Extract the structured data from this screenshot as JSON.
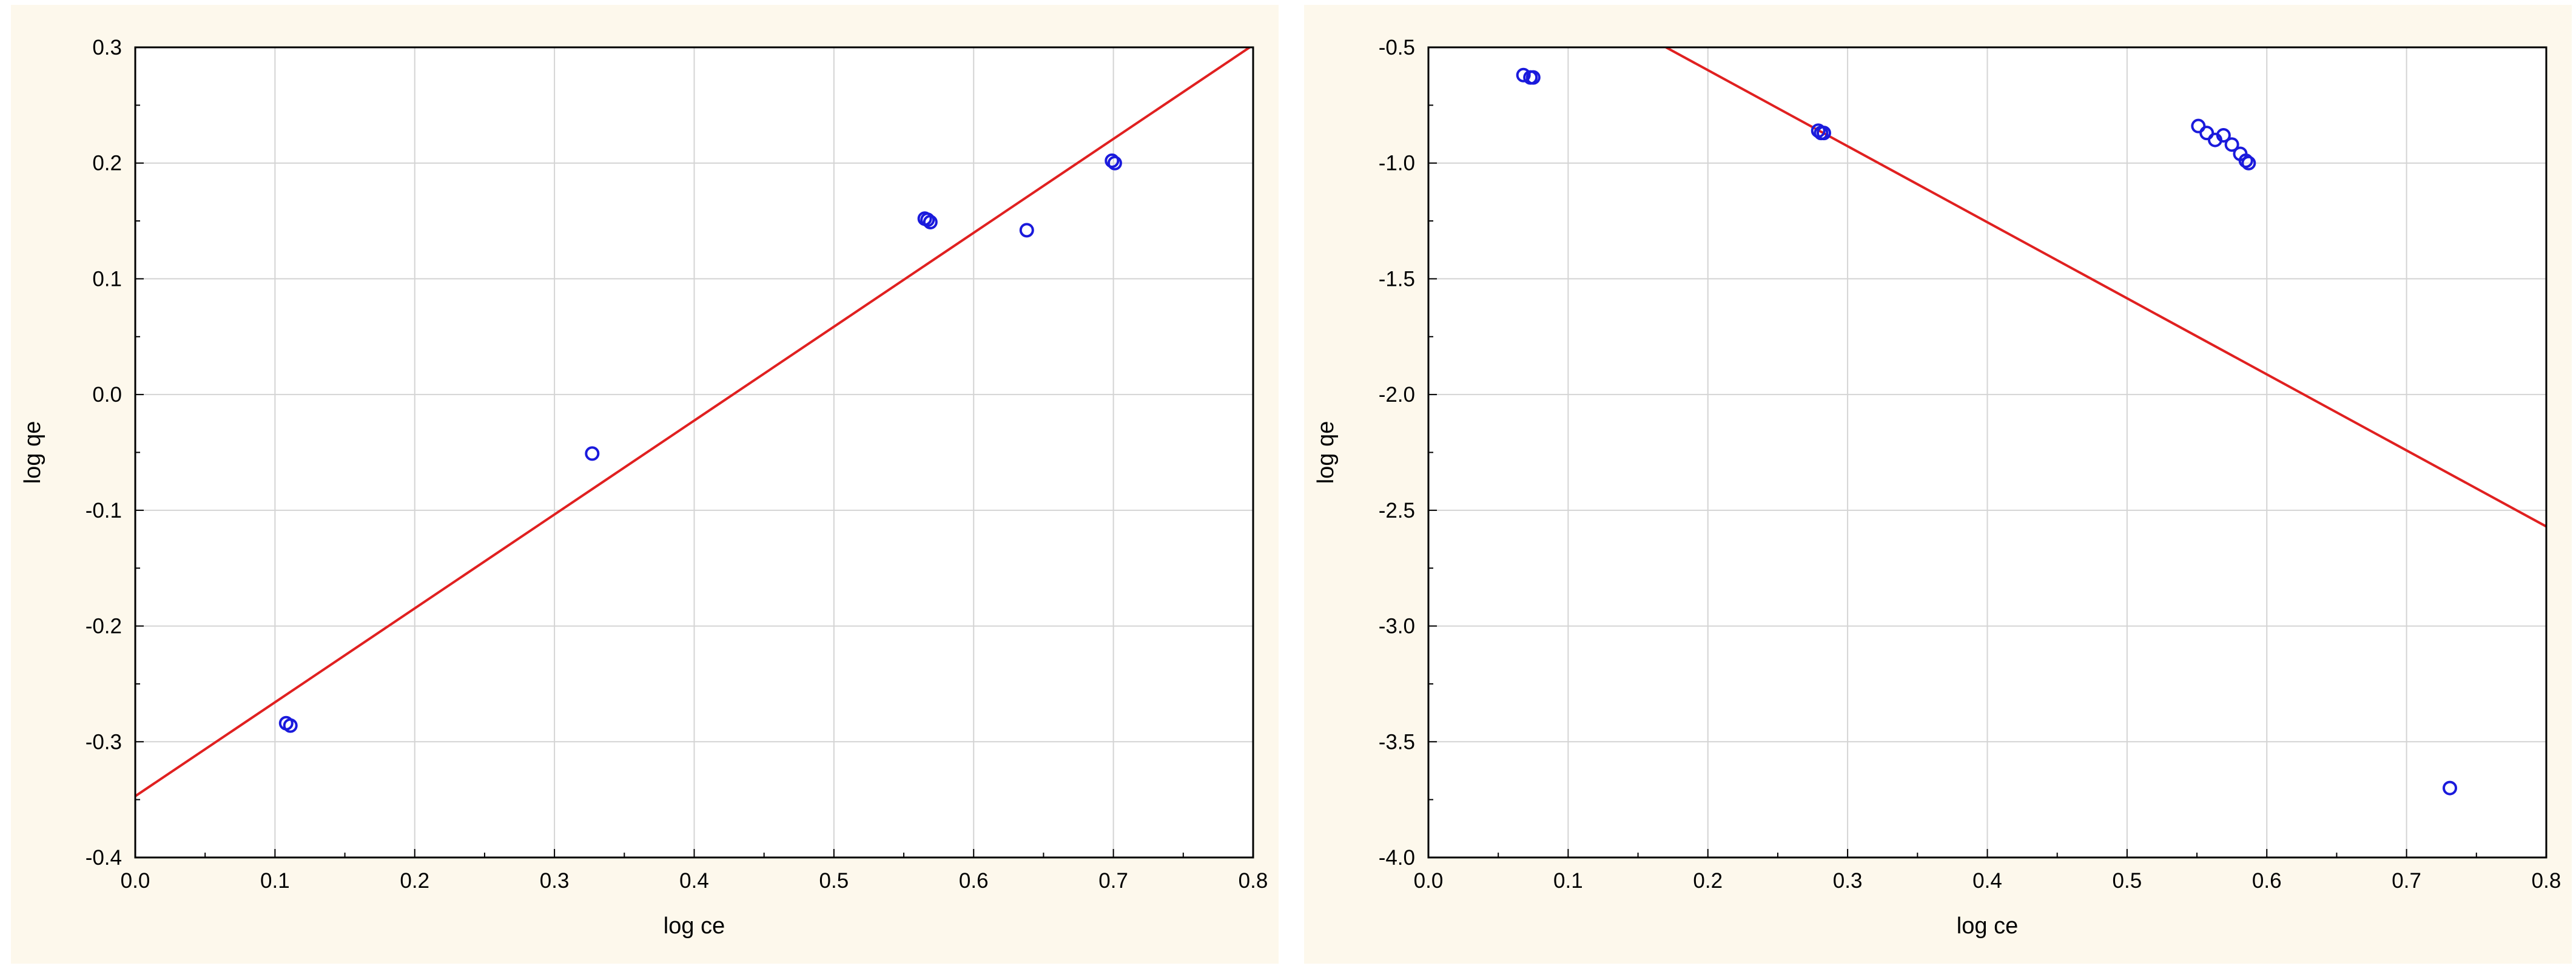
{
  "chart_data": [
    {
      "type": "scatter",
      "title": "",
      "xlabel": "log ce",
      "ylabel": "log qe",
      "xlim": [
        0.0,
        0.8
      ],
      "ylim": [
        -0.4,
        0.3
      ],
      "xticks": [
        "0.0",
        "0.1",
        "0.2",
        "0.3",
        "0.4",
        "0.5",
        "0.6",
        "0.7",
        "0.8"
      ],
      "yticks": [
        "0.3",
        "0.2",
        "0.1",
        "0.0",
        "-0.1",
        "-0.2",
        "-0.3",
        "-0.4"
      ],
      "grid": true,
      "series": [
        {
          "kind": "points",
          "color": "#1a1adc",
          "points": [
            {
              "x": 0.108,
              "y": -0.284
            },
            {
              "x": 0.111,
              "y": -0.286
            },
            {
              "x": 0.327,
              "y": -0.051
            },
            {
              "x": 0.565,
              "y": 0.152
            },
            {
              "x": 0.567,
              "y": 0.151
            },
            {
              "x": 0.569,
              "y": 0.149
            },
            {
              "x": 0.638,
              "y": 0.142
            },
            {
              "x": 0.699,
              "y": 0.202
            },
            {
              "x": 0.701,
              "y": 0.2
            }
          ]
        },
        {
          "kind": "line",
          "color": "#e02020",
          "points": [
            {
              "x": 0.0,
              "y": -0.347
            },
            {
              "x": 0.8,
              "y": 0.302
            }
          ]
        }
      ]
    },
    {
      "type": "scatter",
      "title": "",
      "xlabel": "log ce",
      "ylabel": "log qe",
      "xlim": [
        0.0,
        0.8
      ],
      "ylim": [
        -4.0,
        -0.5
      ],
      "xticks": [
        "0.0",
        "0.1",
        "0.2",
        "0.3",
        "0.4",
        "0.5",
        "0.6",
        "0.7",
        "0.8"
      ],
      "yticks": [
        "-0.5",
        "-1.0",
        "-1.5",
        "-2.0",
        "-2.5",
        "-3.0",
        "-3.5",
        "-4.0"
      ],
      "grid": true,
      "series": [
        {
          "kind": "points",
          "color": "#1a1adc",
          "points": [
            {
              "x": 0.068,
              "y": -0.62
            },
            {
              "x": 0.073,
              "y": -0.63
            },
            {
              "x": 0.075,
              "y": -0.63
            },
            {
              "x": 0.279,
              "y": -0.86
            },
            {
              "x": 0.281,
              "y": -0.87
            },
            {
              "x": 0.283,
              "y": -0.87
            },
            {
              "x": 0.551,
              "y": -0.84
            },
            {
              "x": 0.557,
              "y": -0.87
            },
            {
              "x": 0.563,
              "y": -0.9
            },
            {
              "x": 0.569,
              "y": -0.88
            },
            {
              "x": 0.575,
              "y": -0.92
            },
            {
              "x": 0.581,
              "y": -0.96
            },
            {
              "x": 0.585,
              "y": -0.99
            },
            {
              "x": 0.587,
              "y": -1.0
            },
            {
              "x": 0.731,
              "y": -3.7
            }
          ]
        },
        {
          "kind": "line",
          "color": "#e02020",
          "points": [
            {
              "x": 0.17,
              "y": -0.5
            },
            {
              "x": 0.8,
              "y": -2.57
            }
          ]
        }
      ]
    }
  ]
}
